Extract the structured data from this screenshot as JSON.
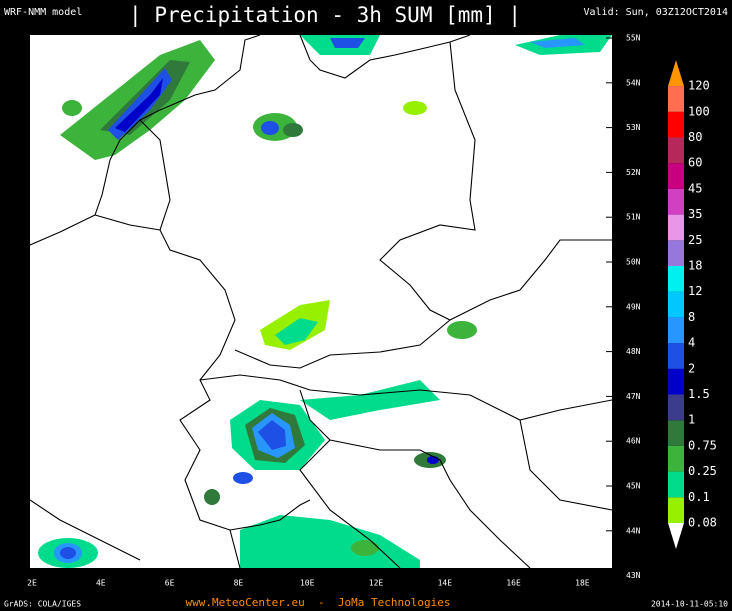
{
  "header": {
    "model": "WRF-NMM model",
    "title": "| Precipitation - 3h SUM [mm] |",
    "valid": "Valid: Sun, 03Z12OCT2014"
  },
  "map": {
    "lat_labels": [
      "55N",
      "54N",
      "53N",
      "52N",
      "51N",
      "50N",
      "49N",
      "48N",
      "47N",
      "46N",
      "45N",
      "44N",
      "43N"
    ],
    "lon_labels": [
      "2E",
      "4E",
      "6E",
      "8E",
      "10E",
      "12E",
      "14E",
      "16E",
      "18E"
    ]
  },
  "colorbar": {
    "levels": [
      "0.08",
      "0.1",
      "0.25",
      "0.75",
      "1",
      "1.5",
      "2",
      "4",
      "8",
      "12",
      "18",
      "25",
      "35",
      "45",
      "60",
      "80",
      "100",
      "120"
    ],
    "colors": [
      "#ffffff",
      "#96f000",
      "#00dc8c",
      "#3cb43c",
      "#2f7a3a",
      "#3c3c8c",
      "#0000c8",
      "#1e50e6",
      "#2896ff",
      "#00c8ff",
      "#00f0f0",
      "#9678dc",
      "#e896e8",
      "#d040c0",
      "#c80080",
      "#b4285a",
      "#ff0000",
      "#ff6e50",
      "#ff9600",
      "#f0c030"
    ]
  },
  "footer": {
    "left": "GrADS: COLA/IGES",
    "center": "www.MeteoCenter.eu  -  JoMa Technologies",
    "right": "2014-10-11-05:10"
  }
}
